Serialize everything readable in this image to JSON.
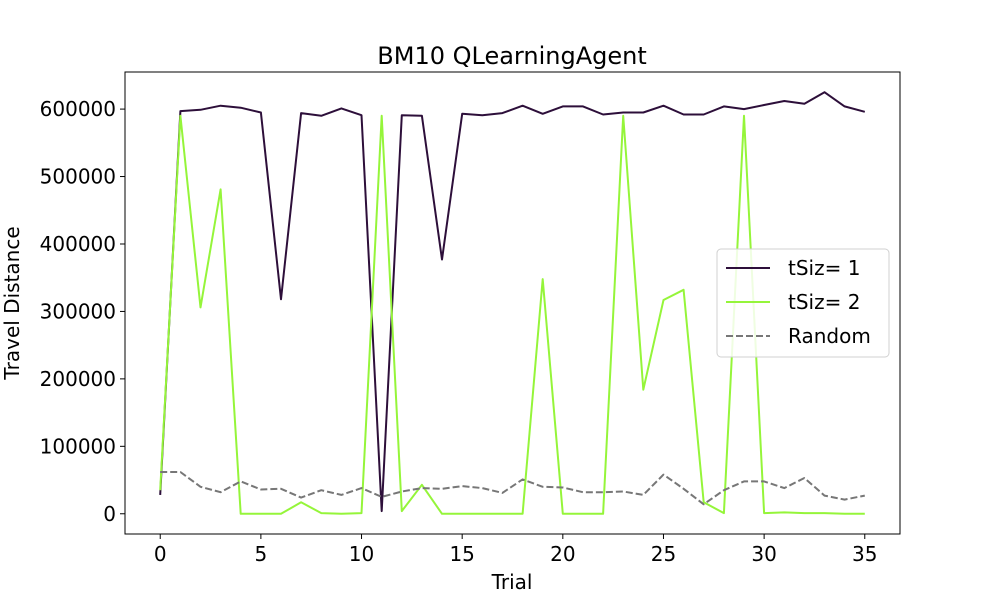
{
  "chart_data": {
    "type": "line",
    "title": "BM10  QLearningAgent",
    "xlabel": "Trial",
    "ylabel": "Travel Distance",
    "xlim": [
      -1.75,
      36.75
    ],
    "ylim": [
      -30000,
      655000
    ],
    "xticks": [
      0,
      5,
      10,
      15,
      20,
      25,
      30,
      35
    ],
    "xtick_labels": [
      "0",
      "5",
      "10",
      "15",
      "20",
      "25",
      "30",
      "35"
    ],
    "yticks": [
      0,
      100000,
      200000,
      300000,
      400000,
      500000,
      600000
    ],
    "ytick_labels": [
      "0",
      "100000",
      "200000",
      "300000",
      "400000",
      "500000",
      "600000"
    ],
    "grid": false,
    "legend_position": "center-right",
    "x": [
      0,
      1,
      2,
      3,
      4,
      5,
      6,
      7,
      8,
      9,
      10,
      11,
      12,
      13,
      14,
      15,
      16,
      17,
      18,
      19,
      20,
      21,
      22,
      23,
      24,
      25,
      26,
      27,
      28,
      29,
      30,
      31,
      32,
      33,
      34,
      35
    ],
    "series": [
      {
        "name": "tSiz= 1",
        "color": "#2d0f3a",
        "style": "solid",
        "values": [
          28000,
          597000,
          599000,
          605000,
          602000,
          595000,
          318000,
          594000,
          590000,
          601000,
          591000,
          4000,
          591000,
          590000,
          377000,
          593000,
          591000,
          594000,
          605000,
          593000,
          604000,
          604000,
          592000,
          595000,
          595000,
          605000,
          592000,
          592000,
          604000,
          600000,
          606000,
          612000,
          608000,
          625000,
          604000,
          596000
        ]
      },
      {
        "name": "tSiz= 2",
        "color": "#95f53a",
        "style": "solid",
        "values": [
          35000,
          590000,
          306000,
          481000,
          0,
          0,
          0,
          17000,
          1000,
          0,
          1000,
          590000,
          4000,
          43000,
          0,
          0,
          0,
          0,
          0,
          348000,
          0,
          0,
          0,
          590000,
          184000,
          317000,
          332000,
          17000,
          1000,
          590000,
          1000,
          2000,
          1000,
          1000,
          0,
          0
        ]
      },
      {
        "name": "Random",
        "color": "#777777",
        "style": "dashed",
        "values": [
          62000,
          62000,
          40000,
          32000,
          48000,
          36000,
          37000,
          24000,
          35000,
          28000,
          38000,
          25000,
          33000,
          38000,
          37000,
          41000,
          38000,
          31000,
          51000,
          40000,
          39000,
          32000,
          32000,
          33000,
          28000,
          58000,
          37000,
          14000,
          35000,
          48000,
          48000,
          38000,
          53000,
          27000,
          21000,
          27000
        ]
      }
    ]
  }
}
